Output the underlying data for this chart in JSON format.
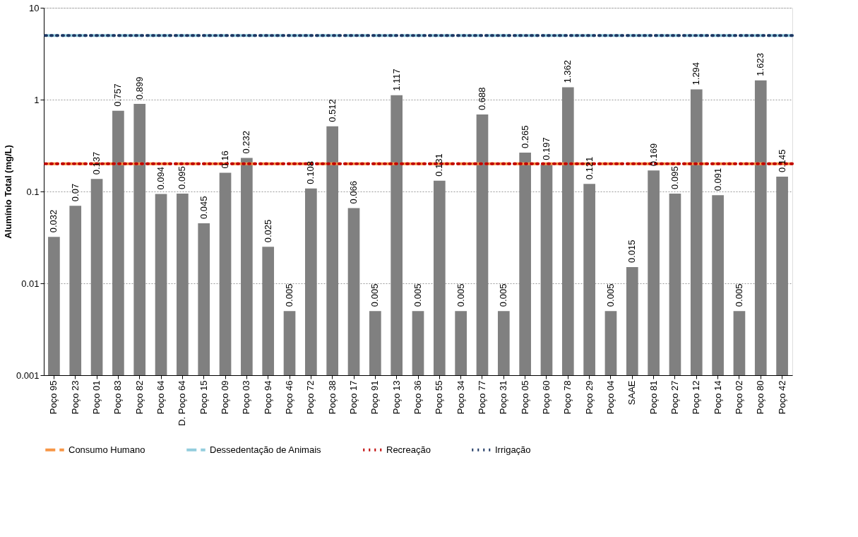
{
  "chart_data": {
    "type": "bar",
    "ylabel": "Alumínio Total (mg/L)",
    "categories": [
      "Poço 95",
      "Poço 23",
      "Poço 01",
      "Poço 83",
      "Poço 82",
      "Poço 64",
      "D. Poço 64",
      "Poço 15",
      "Poço 09",
      "Poço 03",
      "Poço 94",
      "Poço 46",
      "Poço 72",
      "Poço 38",
      "Poço 17",
      "Poço 91",
      "Poço 13",
      "Poço 36",
      "Poço 55",
      "Poço 34",
      "Poço 77",
      "Poço 31",
      "Poço 05",
      "Poço 60",
      "Poço 78",
      "Poço 29",
      "Poço 04",
      "SAAE",
      "Poço 81",
      "Poço 27",
      "Poço 12",
      "Poço 14",
      "Poço 02",
      "Poço 80",
      "Poço 42"
    ],
    "values": [
      0.032,
      0.07,
      0.137,
      0.757,
      0.899,
      0.094,
      0.095,
      0.045,
      0.16,
      0.232,
      0.025,
      0.005,
      0.108,
      0.512,
      0.066,
      0.005,
      1.117,
      0.005,
      0.131,
      0.005,
      0.688,
      0.005,
      0.265,
      0.197,
      1.362,
      0.121,
      0.005,
      0.015,
      0.169,
      0.095,
      1.294,
      0.091,
      0.005,
      1.623,
      0.145
    ],
    "color": "#808080",
    "data_labels": true,
    "log": true,
    "ylim": [
      0.001,
      10
    ],
    "yticks": [
      0.001,
      0.01,
      0.1,
      1,
      10
    ],
    "grid": "y",
    "legend": "bottom",
    "ref_lines": [
      {
        "axis": "y",
        "value": 0.2,
        "label": "Consumo Humano",
        "color": "#f79646",
        "line_style": "dashed"
      },
      {
        "axis": "y",
        "value": 5,
        "label": "Dessedentação de Animais",
        "color": "#93cddd",
        "line_style": "dashed"
      },
      {
        "axis": "y",
        "value": 0.2,
        "label": "Recreação",
        "color": "#c00000",
        "line_style": "dotted"
      },
      {
        "axis": "y",
        "value": 5,
        "label": "Irrigação",
        "color": "#1f3864",
        "line_style": "dotted"
      }
    ]
  }
}
